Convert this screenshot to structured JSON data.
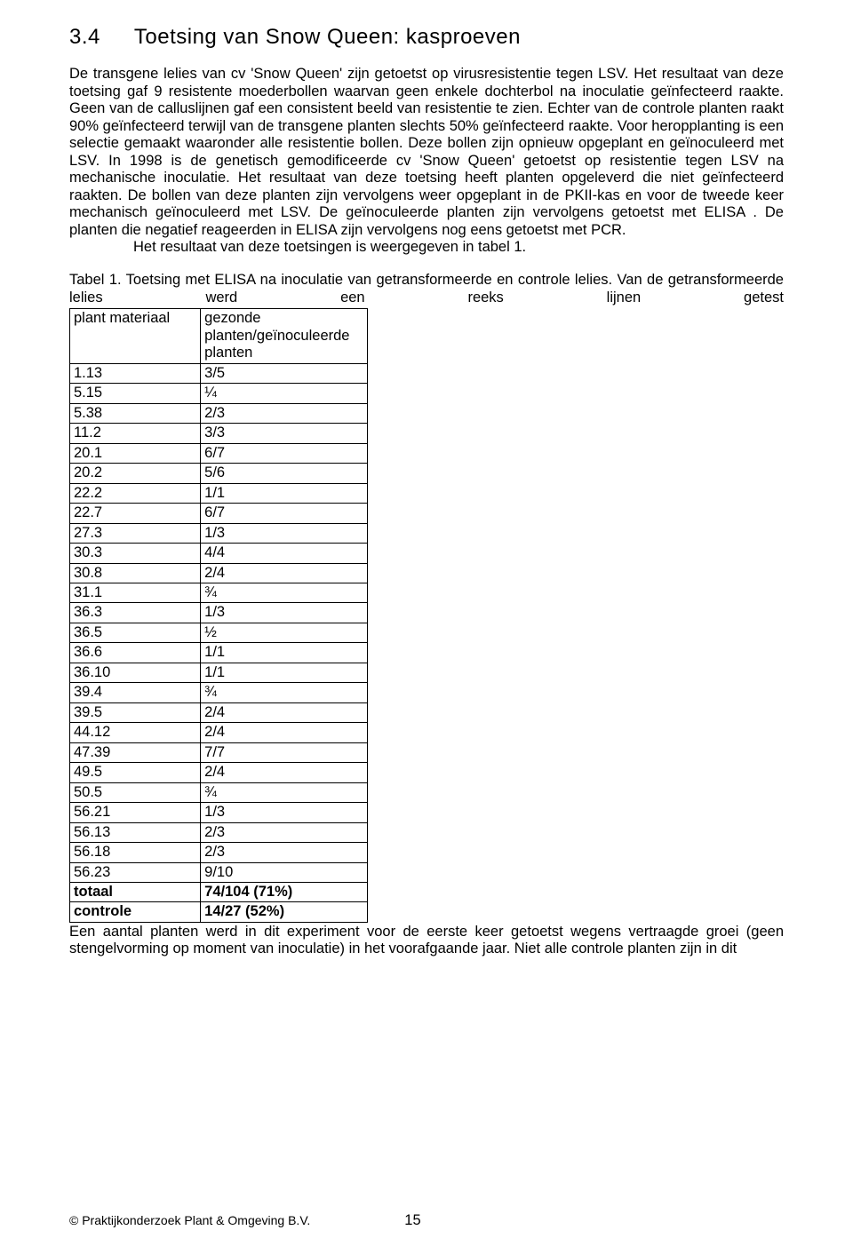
{
  "heading_num": "3.4",
  "heading_title": "Toetsing van Snow Queen: kasproeven",
  "para1": "De transgene lelies van cv 'Snow Queen' zijn getoetst op virusresistentie tegen LSV. Het resultaat van deze toetsing gaf 9 resistente moederbollen waarvan geen enkele dochterbol na inoculatie geïnfecteerd raakte. Geen van de calluslijnen gaf een consistent beeld van resistentie te zien. Echter van de controle planten raakt 90% geïnfecteerd terwijl van de transgene planten slechts 50% geïnfecteerd raakte. Voor heropplanting is een selectie gemaakt waaronder alle resistentie bollen. Deze bollen zijn opnieuw opgeplant en geïnoculeerd met LSV. In 1998 is de genetisch gemodificeerde cv 'Snow Queen' getoetst op resistentie tegen LSV na mechanische inoculatie. Het resultaat van deze toetsing heeft planten opgeleverd die niet geïnfecteerd raakten. De bollen van deze planten zijn vervolgens weer opgeplant in de PKII-kas en voor de tweede keer mechanisch geïnoculeerd met LSV. De geïnoculeerde planten zijn vervolgens getoetst met ELISA . De planten die negatief reageerden in ELISA zijn vervolgens nog eens getoetst met PCR.",
  "para1_indent": "Het resultaat van deze toetsingen is weergegeven in tabel 1.",
  "table_caption": "Tabel 1. Toetsing met ELISA na inoculatie van getransformeerde en controle lelies. Van de getransformeerde lelies werd een reeks lijnen getest",
  "col_headers": [
    "plant materiaal",
    "gezonde planten/geïnoculeerde planten"
  ],
  "rows": [
    [
      "1.13",
      "3/5"
    ],
    [
      "5.15",
      "¼"
    ],
    [
      "5.38",
      "2/3"
    ],
    [
      "11.2",
      "3/3"
    ],
    [
      "20.1",
      "6/7"
    ],
    [
      "20.2",
      "5/6"
    ],
    [
      "22.2",
      "1/1"
    ],
    [
      "22.7",
      "6/7"
    ],
    [
      "27.3",
      "1/3"
    ],
    [
      "30.3",
      "4/4"
    ],
    [
      "30.8",
      "2/4"
    ],
    [
      "31.1",
      "¾"
    ],
    [
      "36.3",
      "1/3"
    ],
    [
      "36.5",
      "½"
    ],
    [
      "36.6",
      "1/1"
    ],
    [
      "36.10",
      "1/1"
    ],
    [
      "39.4",
      "¾"
    ],
    [
      "39.5",
      "2/4"
    ],
    [
      "44.12",
      "2/4"
    ],
    [
      "47.39",
      "7/7"
    ],
    [
      "49.5",
      "2/4"
    ],
    [
      "50.5",
      "¾"
    ],
    [
      "56.21",
      "1/3"
    ],
    [
      "56.13",
      "2/3"
    ],
    [
      "56.18",
      "2/3"
    ],
    [
      "56.23",
      "9/10"
    ]
  ],
  "summary_rows": [
    [
      "totaal",
      "74/104 (71%)"
    ],
    [
      "controle",
      "14/27 (52%)"
    ]
  ],
  "post_table": "Een aantal planten werd in dit experiment voor de eerste keer getoetst wegens vertraagde groei (geen stengelvorming op moment van inoculatie) in het voorafgaande jaar. Niet alle controle planten zijn in dit",
  "footer_org": "© Praktijkonderzoek Plant & Omgeving B.V.",
  "footer_page": "15"
}
